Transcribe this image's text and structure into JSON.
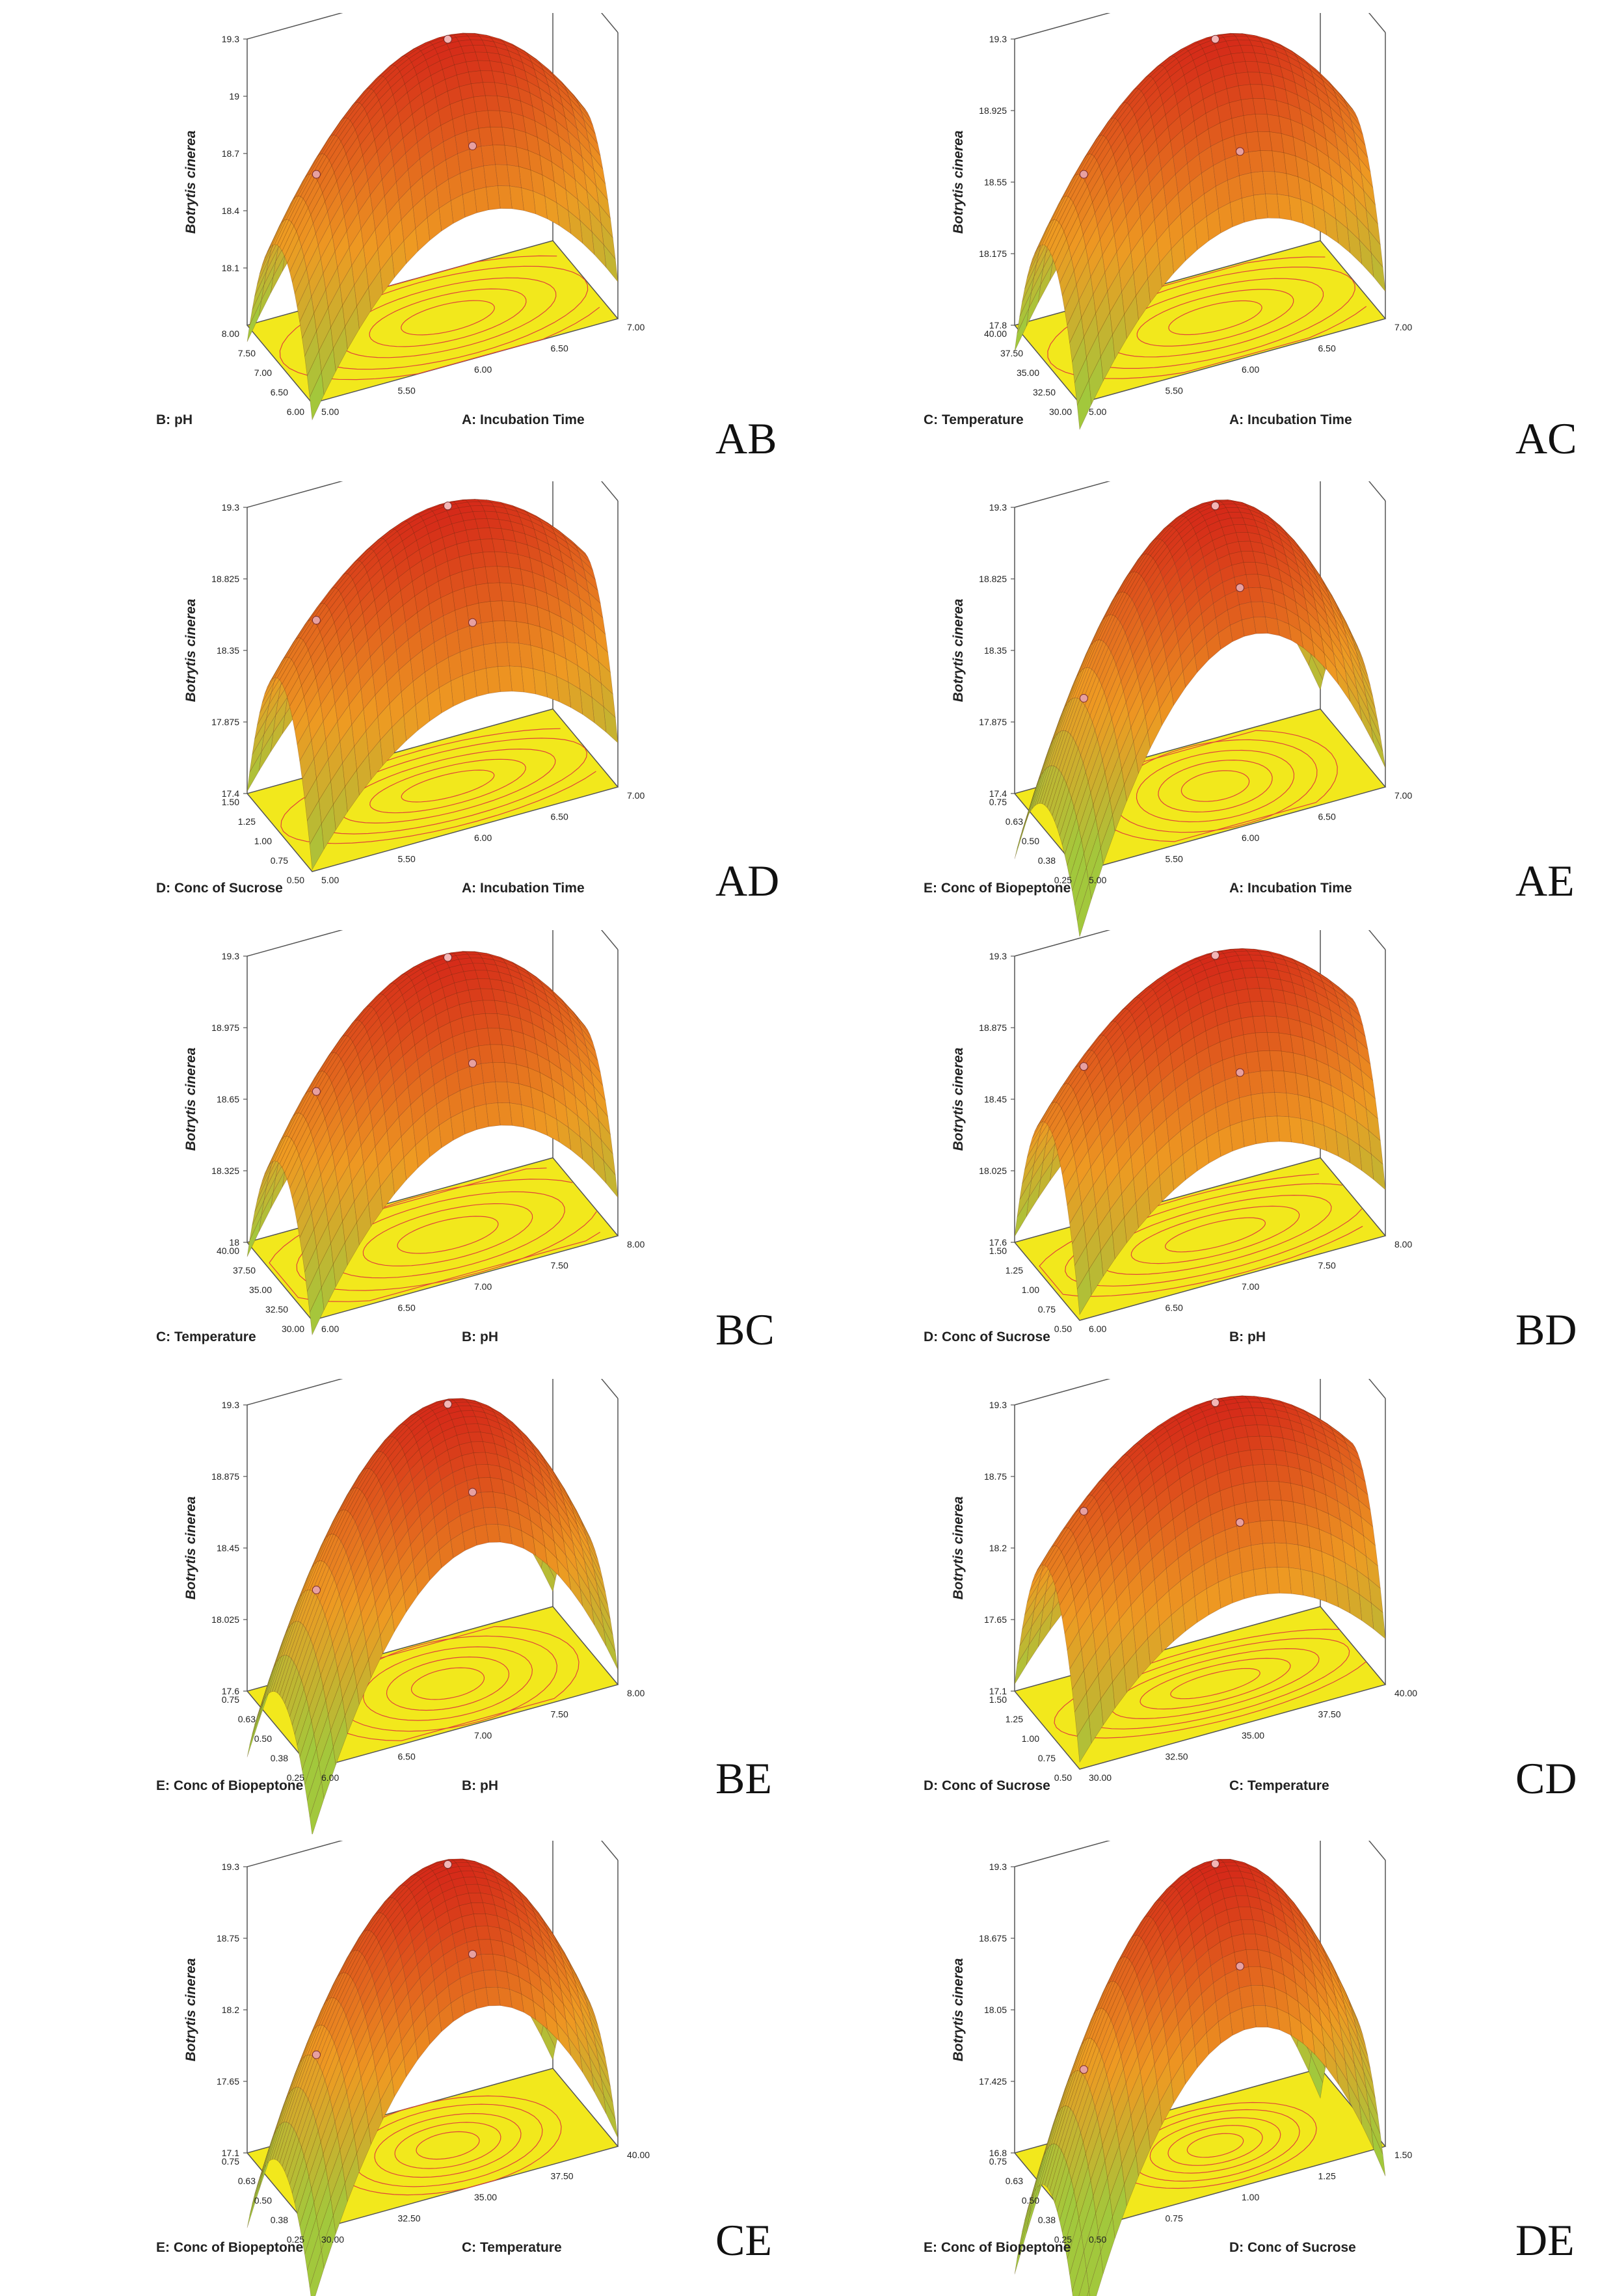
{
  "figure": {
    "response_label": "Botrytis cinerea",
    "colors": {
      "floor": "#f2e81c",
      "contour": "#e0443a",
      "high": "#d42418",
      "mid": "#ee9a22",
      "low": "#a2c83c",
      "frame": "#555555"
    }
  },
  "chart_data": [
    {
      "id": "AB",
      "type": "surface",
      "panel_label": "AB",
      "x": {
        "label": "A: Incubation Time",
        "ticks": [
          "5.00",
          "5.50",
          "6.00",
          "6.50",
          "7.00"
        ],
        "range": [
          5,
          7
        ]
      },
      "y": {
        "label": "B: pH",
        "ticks": [
          "6.00",
          "6.50",
          "7.00",
          "7.50",
          "8.00"
        ],
        "range": [
          6,
          8
        ]
      },
      "z": {
        "label": "Botrytis cinerea",
        "ticks": [
          "18.1",
          "18.4",
          "18.7",
          "19",
          "19.3"
        ],
        "range": [
          17.8,
          19.3
        ]
      },
      "surface": {
        "peak": 19.26,
        "drop_x": 0.7,
        "drop_y": 0.7,
        "interaction": 0
      }
    },
    {
      "id": "AC",
      "type": "surface",
      "panel_label": "AC",
      "x": {
        "label": "A: Incubation Time",
        "ticks": [
          "5.00",
          "5.50",
          "6.00",
          "6.50",
          "7.00"
        ],
        "range": [
          5,
          7
        ]
      },
      "y": {
        "label": "C: Temperature",
        "ticks": [
          "30.00",
          "32.50",
          "35.00",
          "37.50",
          "40.00"
        ],
        "range": [
          30,
          40
        ]
      },
      "z": {
        "label": "Botrytis cinerea",
        "ticks": [
          "17.8",
          "18.175",
          "18.55",
          "18.925",
          "19.3"
        ],
        "range": [
          17.8,
          19.3
        ]
      },
      "surface": {
        "peak": 19.26,
        "drop_x": 0.7,
        "drop_y": 0.75,
        "interaction": 0
      }
    },
    {
      "id": "AD",
      "type": "surface",
      "panel_label": "AD",
      "x": {
        "label": "A: Incubation Time",
        "ticks": [
          "5.00",
          "5.50",
          "6.00",
          "6.50",
          "7.00"
        ],
        "range": [
          5,
          7
        ]
      },
      "y": {
        "label": "D: Conc of Sucrose",
        "ticks": [
          "0.50",
          "0.75",
          "1.00",
          "1.25",
          "1.50"
        ],
        "range": [
          0.5,
          1.5
        ]
      },
      "z": {
        "label": "Botrytis cinerea",
        "ticks": [
          "17.4",
          "17.875",
          "18.35",
          "18.825",
          "19.3"
        ],
        "range": [
          17.4,
          19.3
        ]
      },
      "surface": {
        "peak": 19.26,
        "drop_x": 0.7,
        "drop_y": 1.0,
        "interaction": 0
      }
    },
    {
      "id": "AE",
      "type": "surface",
      "panel_label": "AE",
      "x": {
        "label": "A: Incubation Time",
        "ticks": [
          "5.00",
          "5.50",
          "6.00",
          "6.50",
          "7.00"
        ],
        "range": [
          5,
          7
        ]
      },
      "y": {
        "label": "E: Conc of Biopeptone",
        "ticks": [
          "0.25",
          "0.38",
          "0.50",
          "0.63",
          "0.75"
        ],
        "range": [
          0.25,
          0.75
        ]
      },
      "z": {
        "label": "Botrytis cinerea",
        "ticks": [
          "17.4",
          "17.875",
          "18.35",
          "18.825",
          "19.3"
        ],
        "range": [
          17.4,
          19.3
        ]
      },
      "surface": {
        "peak": 19.26,
        "drop_x": 1.4,
        "drop_y": 0.6,
        "interaction": 0
      }
    },
    {
      "id": "BC",
      "type": "surface",
      "panel_label": "BC",
      "x": {
        "label": "B: pH",
        "ticks": [
          "6.00",
          "6.50",
          "7.00",
          "7.50",
          "8.00"
        ],
        "range": [
          6,
          8
        ]
      },
      "y": {
        "label": "C: Temperature",
        "ticks": [
          "30.00",
          "32.50",
          "35.00",
          "37.50",
          "40.00"
        ],
        "range": [
          30,
          40
        ]
      },
      "z": {
        "label": "Botrytis cinerea",
        "ticks": [
          "18",
          "18.325",
          "18.65",
          "18.975",
          "19.3"
        ],
        "range": [
          18,
          19.3
        ]
      },
      "surface": {
        "peak": 19.26,
        "drop_x": 0.6,
        "drop_y": 0.6,
        "interaction": 0
      }
    },
    {
      "id": "BD",
      "type": "surface",
      "panel_label": "BD",
      "x": {
        "label": "B: pH",
        "ticks": [
          "6.00",
          "6.50",
          "7.00",
          "7.50",
          "8.00"
        ],
        "range": [
          6,
          8
        ]
      },
      "y": {
        "label": "D: Conc of Sucrose",
        "ticks": [
          "0.50",
          "0.75",
          "1.00",
          "1.25",
          "1.50"
        ],
        "range": [
          0.5,
          1.5
        ]
      },
      "z": {
        "label": "Botrytis cinerea",
        "ticks": [
          "17.6",
          "18.025",
          "18.45",
          "18.875",
          "19.3"
        ],
        "range": [
          17.6,
          19.3
        ]
      },
      "surface": {
        "peak": 19.26,
        "drop_x": 0.6,
        "drop_y": 0.9,
        "interaction": 0
      }
    },
    {
      "id": "BE",
      "type": "surface",
      "panel_label": "BE",
      "x": {
        "label": "B: pH",
        "ticks": [
          "6.00",
          "6.50",
          "7.00",
          "7.50",
          "8.00"
        ],
        "range": [
          6,
          8
        ]
      },
      "y": {
        "label": "E: Conc of Biopeptone",
        "ticks": [
          "0.25",
          "0.38",
          "0.50",
          "0.63",
          "0.75"
        ],
        "range": [
          0.25,
          0.75
        ]
      },
      "z": {
        "label": "Botrytis cinerea",
        "ticks": [
          "17.6",
          "18.025",
          "18.45",
          "18.875",
          "19.3"
        ],
        "range": [
          17.6,
          19.3
        ]
      },
      "surface": {
        "peak": 19.26,
        "drop_x": 1.2,
        "drop_y": 0.6,
        "interaction": 0
      }
    },
    {
      "id": "CD",
      "type": "surface",
      "panel_label": "CD",
      "x": {
        "label": "C: Temperature",
        "ticks": [
          "30.00",
          "32.50",
          "35.00",
          "37.50",
          "40.00"
        ],
        "range": [
          30,
          40
        ]
      },
      "y": {
        "label": "D: Conc of Sucrose",
        "ticks": [
          "0.50",
          "0.75",
          "1.00",
          "1.25",
          "1.50"
        ],
        "range": [
          0.5,
          1.5
        ]
      },
      "z": {
        "label": "Botrytis cinerea",
        "ticks": [
          "17.1",
          "17.65",
          "18.2",
          "18.75",
          "19.3"
        ],
        "range": [
          17.1,
          19.3
        ]
      },
      "surface": {
        "peak": 19.26,
        "drop_x": 0.75,
        "drop_y": 1.2,
        "interaction": 0
      }
    },
    {
      "id": "CE",
      "type": "surface",
      "panel_label": "CE",
      "x": {
        "label": "C: Temperature",
        "ticks": [
          "30.00",
          "32.50",
          "35.00",
          "37.50",
          "40.00"
        ],
        "range": [
          30,
          40
        ]
      },
      "y": {
        "label": "E: Conc of Biopeptone",
        "ticks": [
          "0.25",
          "0.38",
          "0.50",
          "0.63",
          "0.75"
        ],
        "range": [
          0.25,
          0.75
        ]
      },
      "z": {
        "label": "Botrytis cinerea",
        "ticks": [
          "17.1",
          "17.65",
          "18.2",
          "18.75",
          "19.3"
        ],
        "range": [
          17.1,
          19.3
        ]
      },
      "surface": {
        "peak": 19.26,
        "drop_x": 1.6,
        "drop_y": 0.8,
        "interaction": 0
      }
    },
    {
      "id": "DE",
      "type": "surface",
      "panel_label": "DE",
      "x": {
        "label": "D: Conc of Sucrose",
        "ticks": [
          "0.50",
          "0.75",
          "1.00",
          "1.25",
          "1.50"
        ],
        "range": [
          0.5,
          1.5
        ]
      },
      "y": {
        "label": "E: Conc of Biopeptone",
        "ticks": [
          "0.25",
          "0.38",
          "0.50",
          "0.63",
          "0.75"
        ],
        "range": [
          0.25,
          0.75
        ]
      },
      "z": {
        "label": "Botrytis cinerea",
        "ticks": [
          "16.8",
          "17.425",
          "18.05",
          "18.675",
          "19.3"
        ],
        "range": [
          16.8,
          19.3
        ]
      },
      "surface": {
        "peak": 19.26,
        "drop_x": 2.0,
        "drop_y": 1.1,
        "interaction": 0
      }
    }
  ]
}
